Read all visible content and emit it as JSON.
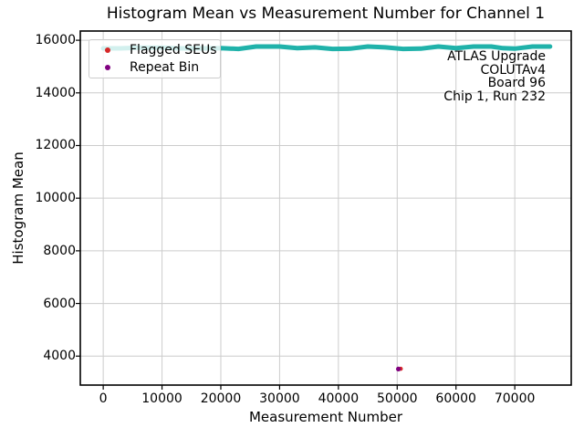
{
  "chart_data": {
    "type": "scatter",
    "title": "Histogram Mean vs Measurement Number for Channel 1",
    "xlabel": "Measurement Number",
    "ylabel": "Histogram Mean",
    "xlim": [
      -3900,
      79600
    ],
    "ylim": [
      2900,
      16350
    ],
    "x_ticks": [
      0,
      10000,
      20000,
      30000,
      40000,
      50000,
      60000,
      70000
    ],
    "y_ticks": [
      4000,
      6000,
      8000,
      10000,
      12000,
      14000,
      16000
    ],
    "grid": true,
    "grid_color": "#cccccc",
    "spine_color": "#000000",
    "legend": {
      "position": "upper left",
      "entries": [
        {
          "label": "Flagged SEUs",
          "marker": "dot",
          "color": "#d62728"
        },
        {
          "label": "Repeat Bin",
          "marker": "dot",
          "color": "#800080"
        }
      ]
    },
    "annotation": {
      "align": "right",
      "lines": [
        "ATLAS Upgrade",
        "COLUTAv4",
        "Board 96",
        "Chip 1, Run 232"
      ]
    },
    "series": [
      {
        "name": "Histogram Mean",
        "type": "line",
        "color": "#20b2aa",
        "linewidth": 5,
        "points": [
          [
            0,
            15690
          ],
          [
            3000,
            15690
          ],
          [
            6000,
            15720
          ],
          [
            10000,
            15720
          ],
          [
            13000,
            15690
          ],
          [
            17000,
            15690
          ],
          [
            20000,
            15700
          ],
          [
            23000,
            15670
          ],
          [
            26000,
            15760
          ],
          [
            30000,
            15760
          ],
          [
            33000,
            15700
          ],
          [
            36000,
            15730
          ],
          [
            39000,
            15670
          ],
          [
            42000,
            15680
          ],
          [
            45000,
            15760
          ],
          [
            48000,
            15730
          ],
          [
            51000,
            15670
          ],
          [
            54000,
            15680
          ],
          [
            57000,
            15760
          ],
          [
            60000,
            15700
          ],
          [
            63000,
            15760
          ],
          [
            66000,
            15760
          ],
          [
            68000,
            15700
          ],
          [
            70000,
            15680
          ],
          [
            73000,
            15760
          ],
          [
            76000,
            15760
          ]
        ]
      },
      {
        "name": "Flagged SEUs",
        "type": "scatter",
        "color": "#d62728",
        "points": [
          [
            50600,
            3520
          ]
        ]
      },
      {
        "name": "Repeat Bin",
        "type": "scatter",
        "color": "#800080",
        "points": [
          [
            50200,
            3510
          ]
        ]
      }
    ]
  }
}
